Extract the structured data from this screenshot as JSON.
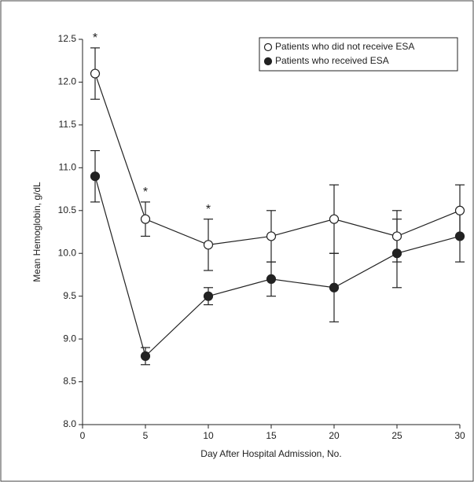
{
  "chart_data": {
    "type": "line",
    "x_label": "Day After Hospital Admission, No.",
    "y_label": "Mean Hemoglobin, g/dL",
    "x": [
      1,
      5,
      10,
      15,
      20,
      25,
      30
    ],
    "series": [
      {
        "name": "Patients who did not receive ESA",
        "color": "#222222",
        "marker_fill": "#ffffff",
        "values": [
          12.1,
          10.4,
          10.1,
          10.2,
          10.4,
          10.2,
          10.5
        ],
        "errors": [
          0.3,
          0.2,
          0.3,
          0.3,
          0.4,
          0.3,
          0.3
        ]
      },
      {
        "name": "Patients who received ESA",
        "color": "#222222",
        "marker_fill": "#222222",
        "values": [
          10.9,
          8.8,
          9.5,
          9.7,
          9.6,
          10.0,
          10.2
        ],
        "errors": [
          0.3,
          0.1,
          0.1,
          0.2,
          0.4,
          0.4,
          0.3
        ]
      }
    ],
    "annotations": [
      {
        "text": "*",
        "x": 1
      },
      {
        "text": "*",
        "x": 5
      },
      {
        "text": "*",
        "x": 10
      }
    ],
    "xlim": [
      0,
      30
    ],
    "xticks": [
      0,
      5,
      10,
      15,
      20,
      25,
      30
    ],
    "ylim": [
      8,
      12.5
    ],
    "yticks": [
      {
        "value": 8,
        "label": "8.0"
      },
      {
        "value": 8.5,
        "label": "8.5"
      },
      {
        "value": 9,
        "label": "9.0"
      },
      {
        "value": 9.5,
        "label": "9.5"
      },
      {
        "value": 10,
        "label": "10.0"
      },
      {
        "value": 10.5,
        "label": "10.5"
      },
      {
        "value": 11,
        "label": "11.0"
      },
      {
        "value": 11.5,
        "label": "11.5"
      },
      {
        "value": 12,
        "label": "12.0"
      },
      {
        "value": 12.5,
        "label": "12.5"
      }
    ],
    "legend": "upper right",
    "grid": false
  }
}
